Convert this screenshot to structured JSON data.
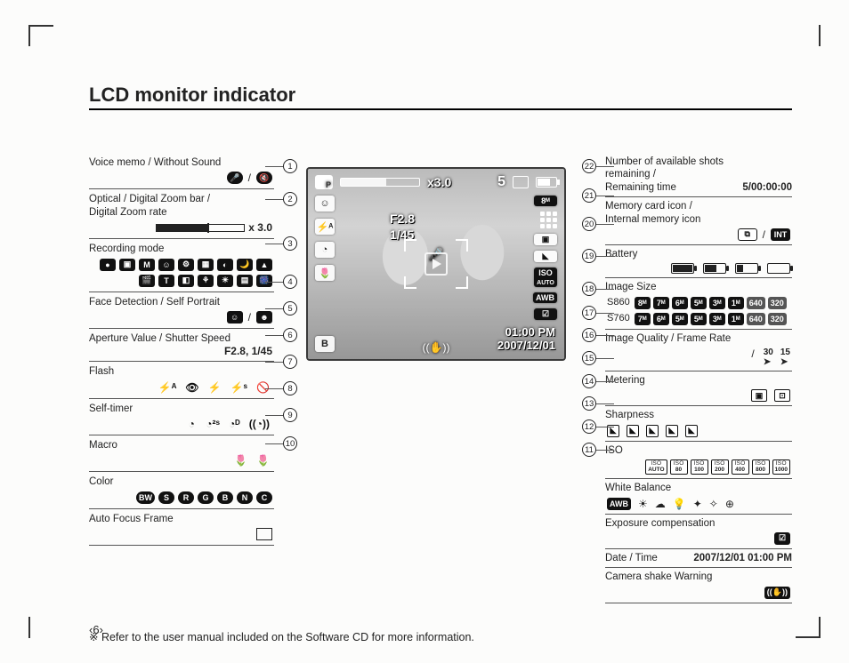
{
  "title": "LCD monitor indicator",
  "footnote": "※ Refer to the user manual included on the Software CD for more information.",
  "page_number": "6",
  "left": [
    {
      "n": 1,
      "label": "Voice memo / Without Sound",
      "icons_html": "mic_slash"
    },
    {
      "n": 2,
      "label": "Optical / Digital Zoom bar /\nDigital Zoom rate",
      "zoom": "x 3.0"
    },
    {
      "n": 3,
      "label": "Recording mode",
      "icons": [
        "●",
        "▣",
        "M",
        "☺",
        "⚙",
        "▦",
        "◐",
        "🌙",
        "▲",
        "🎬",
        "T",
        "◧",
        "⚘",
        "☀",
        "▤",
        "🎆"
      ]
    },
    {
      "n": 4,
      "label": "Face Detection / Self Portrait",
      "icons_html": "face_pair"
    },
    {
      "n": 5,
      "label": "Aperture Value / Shutter Speed",
      "val_right": "F2.8, 1/45"
    },
    {
      "n": 6,
      "label": "Flash",
      "icons": [
        "⚡ᴬ",
        "👁",
        "⚡",
        "⚡ˢ",
        "🚫"
      ]
    },
    {
      "n": 7,
      "label": "Self-timer",
      "icons": [
        "◔",
        "◔²ˢ",
        "◔ᴰ",
        "((◔))"
      ]
    },
    {
      "n": 8,
      "label": "Macro",
      "icons": [
        "🌷",
        "🌷"
      ]
    },
    {
      "n": 9,
      "label": "Color",
      "icons": [
        "BW",
        "S",
        "R",
        "G",
        "B",
        "N",
        "C"
      ]
    },
    {
      "n": 10,
      "label": "Auto Focus Frame",
      "box": true
    }
  ],
  "right": [
    {
      "n": 22,
      "label": "Number of available shots remaining /\nRemaining time",
      "val_right": "5/00:00:00"
    },
    {
      "n": 21,
      "label": "Memory card icon /\nInternal memory icon",
      "icons_html": "mem_pair"
    },
    {
      "n": 20,
      "label": "Battery",
      "batts": [
        100,
        60,
        30,
        0
      ]
    },
    {
      "n": 19,
      "label": "Image Size",
      "rows": [
        {
          "pre": "S860",
          "pills": [
            "8ᴹ",
            "7ᴹ",
            "6ᴹ",
            "5ᴹ",
            "3ᴹ",
            "1ᴹ",
            "640",
            "320"
          ]
        },
        {
          "pre": "S760",
          "pills": [
            "7ᴹ",
            "6ᴹ",
            "5ᴹ",
            "5ᴹ",
            "3ᴹ",
            "1ᴹ",
            "640",
            "320"
          ]
        }
      ]
    },
    {
      "n": 18,
      "label": "Image Quality / Frame Rate",
      "icons_html": "quality_rate"
    },
    {
      "n": 17,
      "label": "Metering",
      "icons": [
        "▣",
        "⊡"
      ]
    },
    {
      "n": 16,
      "label": "Sharpness",
      "icons": [
        "◣",
        "◣",
        "◣",
        "◣",
        "◣"
      ]
    },
    {
      "n": 15,
      "label": "ISO",
      "iso": [
        "AUTO",
        "80",
        "100",
        "200",
        "400",
        "800",
        "1000"
      ]
    },
    {
      "n": 14,
      "label": "White Balance",
      "icons": [
        "AWB",
        "☀",
        "☁",
        "💡",
        "✦",
        "✧",
        "⊕"
      ]
    },
    {
      "n": 13,
      "label": "Exposure compensation",
      "icons": [
        "☑"
      ]
    },
    {
      "n": 12,
      "label": "Date / Time",
      "val_right": "2007/12/01  01:00 PM"
    },
    {
      "n": 11,
      "label": "Camera shake Warning",
      "icons": [
        "((✋))"
      ]
    }
  ],
  "lcd": {
    "zoom_rate": "x3.0",
    "shots": "5",
    "aperture": "F2.8",
    "shutter": "1/45",
    "time": "01:00 PM",
    "date": "2007/12/01",
    "size_badge": "8ᴹ",
    "iso_label": "ISO",
    "iso_mode": "AUTO",
    "awb": "AWB"
  }
}
